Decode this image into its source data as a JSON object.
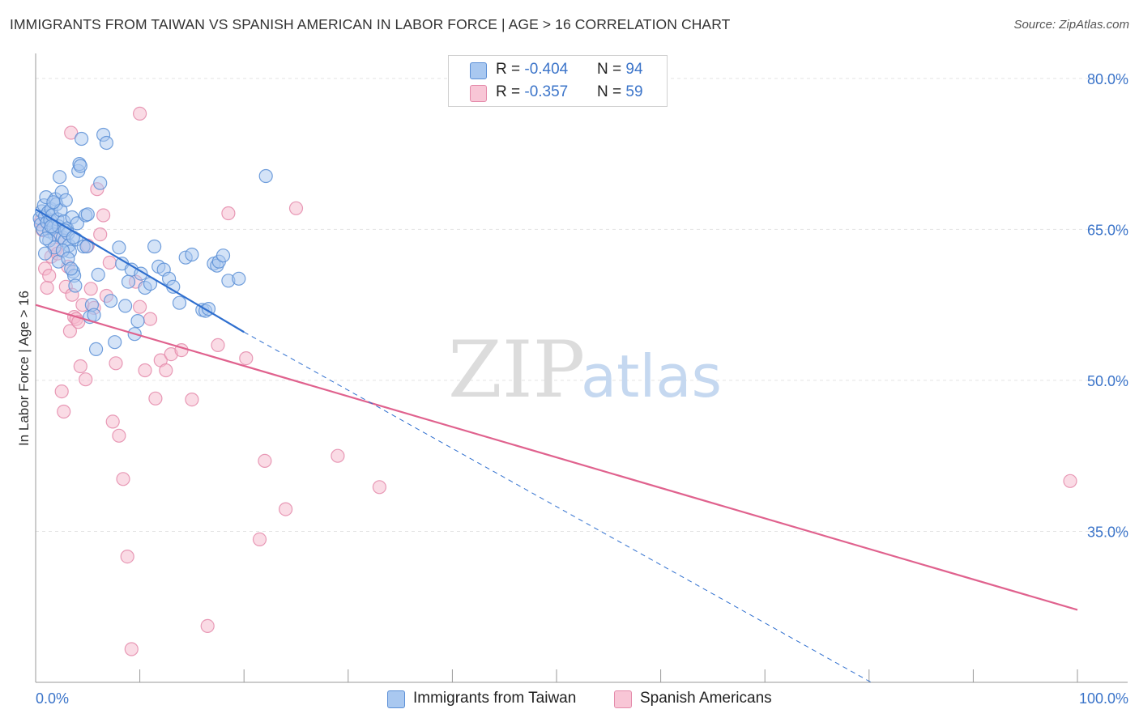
{
  "title": "IMMIGRANTS FROM TAIWAN VS SPANISH AMERICAN IN LABOR FORCE | AGE > 16 CORRELATION CHART",
  "source": "Source: ZipAtlas.com",
  "watermark": {
    "zip": "ZIP",
    "atlas": "atlas"
  },
  "colors": {
    "blue_fill": "#a9c8f0",
    "blue_stroke": "#5b8fd6",
    "blue_line": "#2f6fcf",
    "pink_fill": "#f5b8cc",
    "pink_stroke": "#e48aaa",
    "pink_line": "#e0628e",
    "tick_label": "#3b74c9",
    "grid": "#e3e3e3"
  },
  "legend": {
    "rows": [
      {
        "r_label": "R = ",
        "r_value": "-0.404",
        "n_label": "N = ",
        "n_value": "94",
        "color": "#a9c8f0",
        "border": "#5b8fd6"
      },
      {
        "r_label": "R = ",
        "r_value": "-0.357",
        "n_label": "N = ",
        "n_value": "59",
        "color": "#f8c6d6",
        "border": "#e48aaa"
      }
    ]
  },
  "series_labels": {
    "blue": "Immigrants from Taiwan",
    "pink": "Spanish Americans"
  },
  "chart_data": {
    "type": "scatter",
    "title": "IMMIGRANTS FROM TAIWAN VS SPANISH AMERICAN IN LABOR FORCE | AGE > 16 CORRELATION CHART",
    "xlabel": "",
    "ylabel": "In Labor Force | Age > 16",
    "xlim": [
      0,
      100
    ],
    "ylim": [
      20,
      82
    ],
    "x_tick_labels": [
      "0.0%",
      "100.0%"
    ],
    "y_ticks": [
      35,
      50,
      65,
      80
    ],
    "y_tick_labels": [
      "35.0%",
      "50.0%",
      "65.0%",
      "80.0%"
    ],
    "grid": true,
    "series": [
      {
        "name": "Immigrants from Taiwan",
        "r": -0.404,
        "n": 94,
        "trend": {
          "x": [
            0,
            20
          ],
          "y": [
            67.0,
            54.8
          ]
        },
        "trend_extension": {
          "x": [
            20,
            80.2
          ],
          "y": [
            54.8,
            20.0
          ]
        },
        "points": [
          [
            0.4,
            66.1
          ],
          [
            0.5,
            65.5
          ],
          [
            0.6,
            66.8
          ],
          [
            0.7,
            65.0
          ],
          [
            0.8,
            67.4
          ],
          [
            0.9,
            66.3
          ],
          [
            1.0,
            68.2
          ],
          [
            1.1,
            65.7
          ],
          [
            1.2,
            66.7
          ],
          [
            1.3,
            64.8
          ],
          [
            1.4,
            65.9
          ],
          [
            1.5,
            67.0
          ],
          [
            1.6,
            66.4
          ],
          [
            1.7,
            65.2
          ],
          [
            1.8,
            64.5
          ],
          [
            1.9,
            68.0
          ],
          [
            2.0,
            67.5
          ],
          [
            2.1,
            66.0
          ],
          [
            2.2,
            65.3
          ],
          [
            2.3,
            70.2
          ],
          [
            2.4,
            66.9
          ],
          [
            2.5,
            68.7
          ],
          [
            2.6,
            64.2
          ],
          [
            2.7,
            65.8
          ],
          [
            2.8,
            63.9
          ],
          [
            2.9,
            67.9
          ],
          [
            3.0,
            65.1
          ],
          [
            3.1,
            64.6
          ],
          [
            3.2,
            63.4
          ],
          [
            3.3,
            62.8
          ],
          [
            3.5,
            66.2
          ],
          [
            3.6,
            60.8
          ],
          [
            3.7,
            60.4
          ],
          [
            3.8,
            59.4
          ],
          [
            3.9,
            64.0
          ],
          [
            4.0,
            65.6
          ],
          [
            4.1,
            70.8
          ],
          [
            4.2,
            71.5
          ],
          [
            4.3,
            71.3
          ],
          [
            4.4,
            74.0
          ],
          [
            4.6,
            63.3
          ],
          [
            4.8,
            66.4
          ],
          [
            5.0,
            66.5
          ],
          [
            5.2,
            56.3
          ],
          [
            5.4,
            57.5
          ],
          [
            5.6,
            56.5
          ],
          [
            5.8,
            53.1
          ],
          [
            6.0,
            60.5
          ],
          [
            6.2,
            69.6
          ],
          [
            6.5,
            74.4
          ],
          [
            6.8,
            73.6
          ],
          [
            7.2,
            57.9
          ],
          [
            7.6,
            53.8
          ],
          [
            8.0,
            63.2
          ],
          [
            8.3,
            61.6
          ],
          [
            8.6,
            57.4
          ],
          [
            8.9,
            59.8
          ],
          [
            9.2,
            61.0
          ],
          [
            9.5,
            54.6
          ],
          [
            9.8,
            55.9
          ],
          [
            10.1,
            60.6
          ],
          [
            10.5,
            59.2
          ],
          [
            11.0,
            59.6
          ],
          [
            11.4,
            63.3
          ],
          [
            11.8,
            61.3
          ],
          [
            12.3,
            61.0
          ],
          [
            12.8,
            60.1
          ],
          [
            13.2,
            59.3
          ],
          [
            13.8,
            57.7
          ],
          [
            14.4,
            62.2
          ],
          [
            15.0,
            62.5
          ],
          [
            16.0,
            57.0
          ],
          [
            16.3,
            56.9
          ],
          [
            16.6,
            57.1
          ],
          [
            17.1,
            61.6
          ],
          [
            17.4,
            61.4
          ],
          [
            17.6,
            61.8
          ],
          [
            18.0,
            62.4
          ],
          [
            18.5,
            59.9
          ],
          [
            19.5,
            60.1
          ],
          [
            22.1,
            70.3
          ],
          [
            1.3,
            63.9
          ],
          [
            1.8,
            63.2
          ],
          [
            2.2,
            61.8
          ],
          [
            2.6,
            62.9
          ],
          [
            3.1,
            62.1
          ],
          [
            3.4,
            61.1
          ],
          [
            1.0,
            64.1
          ],
          [
            1.5,
            65.3
          ],
          [
            0.9,
            62.6
          ],
          [
            2.8,
            64.9
          ],
          [
            3.6,
            64.2
          ],
          [
            4.9,
            63.3
          ],
          [
            1.7,
            67.7
          ]
        ]
      },
      {
        "name": "Spanish Americans",
        "r": -0.357,
        "n": 59,
        "trend": {
          "x": [
            0,
            100
          ],
          "y": [
            57.5,
            27.2
          ]
        },
        "points": [
          [
            0.5,
            65.8
          ],
          [
            0.7,
            64.9
          ],
          [
            0.9,
            61.1
          ],
          [
            1.1,
            59.2
          ],
          [
            1.3,
            60.4
          ],
          [
            1.5,
            62.3
          ],
          [
            1.7,
            65.2
          ],
          [
            1.9,
            63.0
          ],
          [
            2.1,
            62.6
          ],
          [
            2.3,
            64.2
          ],
          [
            2.5,
            48.9
          ],
          [
            2.7,
            46.9
          ],
          [
            2.9,
            59.3
          ],
          [
            3.1,
            61.3
          ],
          [
            3.3,
            54.9
          ],
          [
            3.5,
            58.5
          ],
          [
            3.7,
            56.3
          ],
          [
            3.9,
            56.1
          ],
          [
            4.1,
            55.8
          ],
          [
            4.3,
            51.4
          ],
          [
            4.5,
            57.5
          ],
          [
            4.8,
            50.1
          ],
          [
            5.0,
            63.4
          ],
          [
            5.3,
            59.1
          ],
          [
            5.6,
            57.2
          ],
          [
            5.9,
            69.0
          ],
          [
            6.2,
            64.5
          ],
          [
            6.5,
            66.4
          ],
          [
            6.8,
            58.4
          ],
          [
            7.1,
            61.7
          ],
          [
            7.4,
            45.9
          ],
          [
            7.7,
            51.7
          ],
          [
            8.0,
            44.5
          ],
          [
            8.4,
            40.2
          ],
          [
            8.8,
            32.5
          ],
          [
            9.2,
            23.3
          ],
          [
            9.6,
            59.8
          ],
          [
            10.0,
            57.3
          ],
          [
            10.5,
            51.0
          ],
          [
            11.0,
            56.1
          ],
          [
            11.5,
            48.2
          ],
          [
            12.0,
            52.0
          ],
          [
            12.5,
            51.0
          ],
          [
            13.0,
            52.6
          ],
          [
            14.0,
            53.0
          ],
          [
            15.0,
            48.1
          ],
          [
            16.5,
            25.6
          ],
          [
            17.5,
            53.5
          ],
          [
            18.5,
            66.6
          ],
          [
            20.2,
            52.2
          ],
          [
            21.5,
            34.2
          ],
          [
            22.0,
            42.0
          ],
          [
            24.0,
            37.2
          ],
          [
            25.0,
            67.1
          ],
          [
            29.0,
            42.5
          ],
          [
            33.0,
            39.4
          ],
          [
            99.3,
            40.0
          ],
          [
            3.4,
            74.6
          ],
          [
            10.0,
            76.5
          ]
        ]
      }
    ]
  }
}
